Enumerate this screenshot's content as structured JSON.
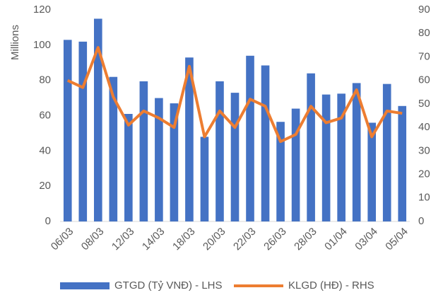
{
  "chart_data": {
    "type": "bar_line",
    "y_label": "Millions",
    "categories": [
      "06/03",
      null,
      "08/03",
      null,
      "12/03",
      null,
      "14/03",
      null,
      "18/03",
      null,
      "20/03",
      null,
      "22/03",
      null,
      "26/03",
      null,
      "28/03",
      null,
      "01/04",
      null,
      "03/04",
      null,
      "05/04"
    ],
    "series": [
      {
        "name": "GTGD (Tỷ VNĐ) - LHS",
        "color": "#4472c4",
        "type": "bar",
        "values": [
          103,
          102,
          115,
          82,
          61,
          79.5,
          70,
          67,
          93,
          48,
          79.5,
          73,
          94,
          88.5,
          56.5,
          64,
          84,
          72,
          72.5,
          78.5,
          56,
          78,
          65.5
        ]
      },
      {
        "name": "KLGD (HĐ) - RHS",
        "color": "#ed7d31",
        "type": "line",
        "axis": "y2",
        "values": [
          60,
          57,
          74,
          53,
          41,
          47,
          44,
          40,
          66,
          36,
          47,
          40,
          52,
          49,
          34,
          37,
          49,
          42,
          44,
          56,
          36,
          47,
          46
        ]
      }
    ],
    "ylim": [
      0,
      120
    ],
    "yticks": [
      0,
      20,
      40,
      60,
      80,
      100,
      120
    ],
    "y2lim": [
      0,
      90
    ],
    "y2ticks": [
      0,
      10,
      20,
      30,
      40,
      50,
      60,
      70,
      80,
      90
    ]
  }
}
